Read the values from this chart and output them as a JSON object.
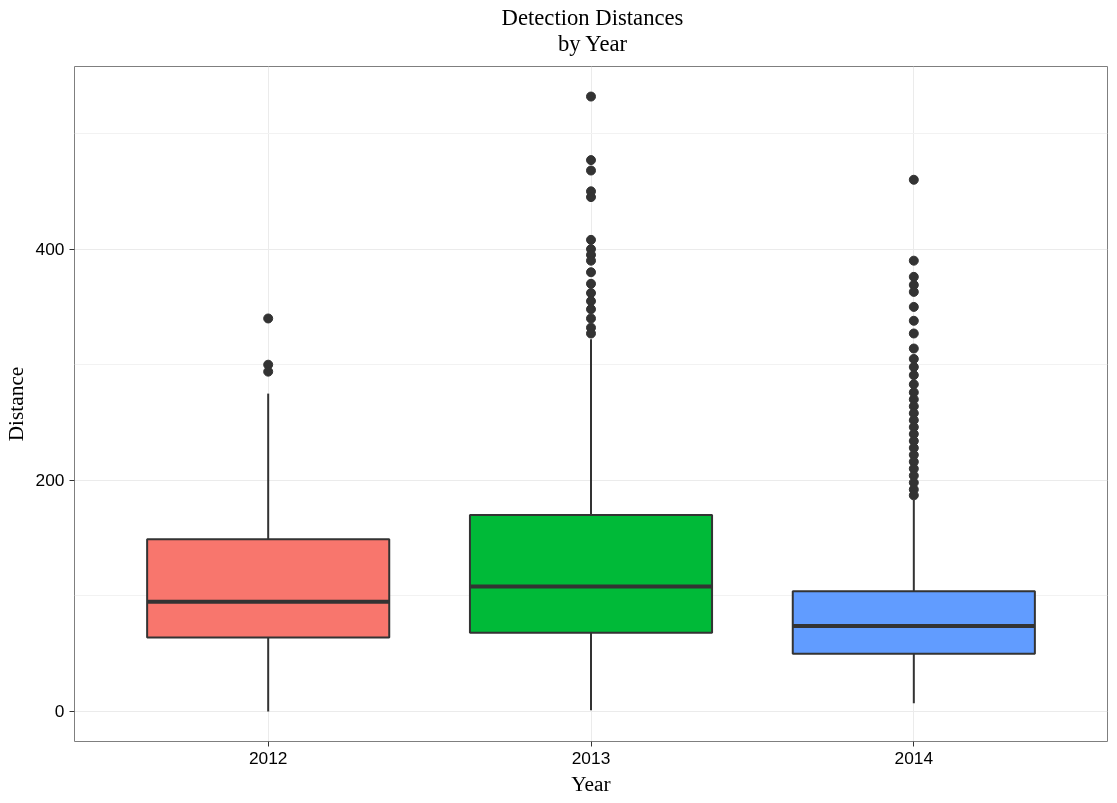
{
  "chart_data": {
    "type": "box",
    "title": "Detection Distances\nby Year",
    "xlabel": "Year",
    "ylabel": "Distance",
    "categories": [
      "2012",
      "2013",
      "2014"
    ],
    "colors": [
      "#f8766d",
      "#00ba38",
      "#619cff"
    ],
    "boxes": [
      {
        "low": 0,
        "q1": 64,
        "median": 95,
        "q3": 149,
        "high": 275,
        "outliers": [
          340,
          300,
          294
        ]
      },
      {
        "low": 1,
        "q1": 68,
        "median": 108,
        "q3": 170,
        "high": 322,
        "outliers": [
          532,
          477,
          468,
          450,
          445,
          408,
          400,
          395,
          390,
          380,
          370,
          362,
          355,
          348,
          340,
          332,
          327
        ]
      },
      {
        "low": 7,
        "q1": 50,
        "median": 74,
        "q3": 104,
        "high": 183,
        "outliers": [
          460,
          390,
          376,
          369,
          363,
          350,
          338,
          327,
          314,
          305,
          298,
          291,
          283,
          276,
          270,
          264,
          258,
          252,
          246,
          240,
          234,
          228,
          222,
          216,
          210,
          204,
          198,
          192,
          187
        ]
      }
    ],
    "ylim": [
      -26,
      558
    ],
    "yticks": [
      0,
      200,
      400
    ],
    "grid": true
  }
}
